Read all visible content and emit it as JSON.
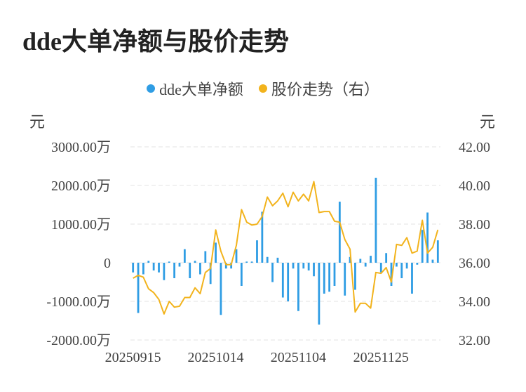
{
  "title": "dde大单净额与股价走势",
  "legend": [
    {
      "label": "dde大单净额",
      "color": "#2f9de4"
    },
    {
      "label": "股价走势（右）",
      "color": "#f2b31c"
    }
  ],
  "left_axis_unit": "元",
  "right_axis_unit": "元",
  "chart_data": {
    "type": "bar+line",
    "grid": true,
    "legend_position": "top-center",
    "x_tick_labels": [
      "20250915",
      "20251014",
      "20251104",
      "20251125"
    ],
    "x_tick_indices": [
      0,
      16,
      32,
      48
    ],
    "y_left": {
      "ticks": [
        3000,
        2000,
        1000,
        0,
        -1000,
        -2000
      ],
      "tick_labels": [
        "3000.00万",
        "2000.00万",
        "1000.00万",
        "0",
        "-1000.00万",
        "-2000.00万"
      ],
      "range": [
        -2000,
        3000
      ]
    },
    "y_right": {
      "ticks": [
        42,
        40,
        38,
        36,
        34,
        32
      ],
      "tick_labels": [
        "42.00",
        "40.00",
        "38.00",
        "36.00",
        "34.00",
        "32.00"
      ],
      "range": [
        32,
        42
      ]
    },
    "series": [
      {
        "name": "dde大单净额",
        "kind": "bar",
        "axis": "left",
        "color": "#2f9de4",
        "values": [
          -250,
          -1300,
          -300,
          50,
          -200,
          -250,
          -450,
          30,
          -400,
          -100,
          350,
          -400,
          50,
          -300,
          300,
          -550,
          520,
          -1350,
          -150,
          -150,
          350,
          -600,
          30,
          30,
          580,
          1320,
          150,
          -500,
          130,
          -900,
          -1000,
          -150,
          -1250,
          -150,
          -200,
          -350,
          -1600,
          -800,
          -750,
          -600,
          1580,
          -850,
          150,
          -700,
          100,
          -100,
          180,
          2200,
          -250,
          250,
          -600,
          -100,
          -400,
          -150,
          -800,
          -50,
          850,
          1300,
          80,
          580
        ]
      },
      {
        "name": "股价走势（右）",
        "kind": "line",
        "axis": "right",
        "color": "#f2b31c",
        "values": [
          35.2,
          35.35,
          35.25,
          34.65,
          34.45,
          34.1,
          33.35,
          34.0,
          33.7,
          33.75,
          34.2,
          34.2,
          34.7,
          34.4,
          35.5,
          35.7,
          37.7,
          36.6,
          35.9,
          35.9,
          36.9,
          38.75,
          38.1,
          37.95,
          38.0,
          38.4,
          39.4,
          38.95,
          39.2,
          39.6,
          38.9,
          39.65,
          39.2,
          39.55,
          39.2,
          40.2,
          38.6,
          38.65,
          38.65,
          38.15,
          38.1,
          37.2,
          36.7,
          33.45,
          33.9,
          33.9,
          33.65,
          35.5,
          35.45,
          35.75,
          35.0,
          36.95,
          36.9,
          37.3,
          36.5,
          36.6,
          38.2,
          36.5,
          36.8,
          37.7
        ]
      }
    ]
  }
}
